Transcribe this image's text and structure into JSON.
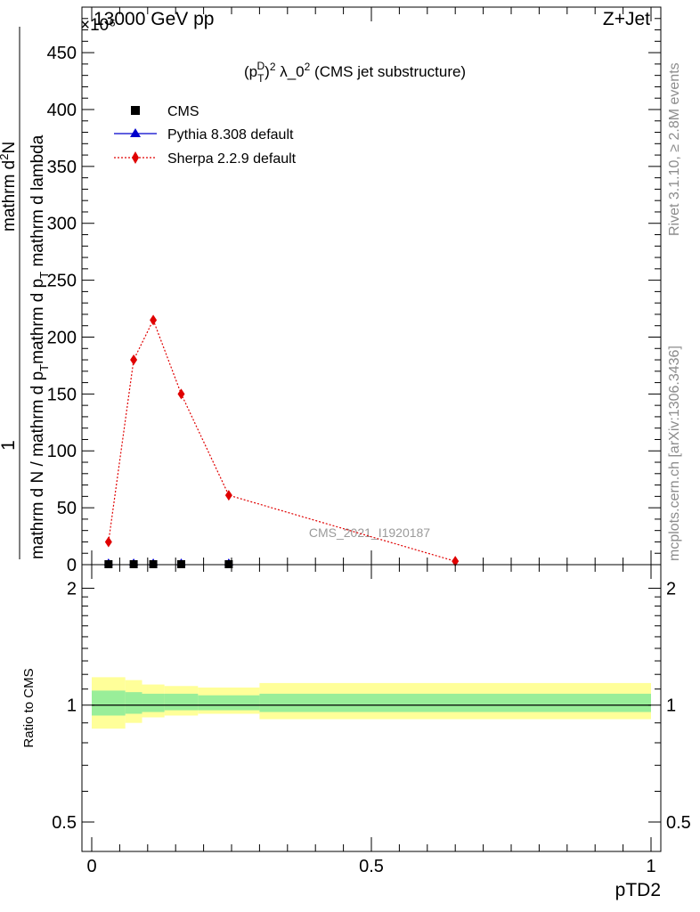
{
  "header": {
    "left": "13000 GeV pp",
    "right": "Z+Jet",
    "exponent_label": "×10⁶"
  },
  "side_labels": {
    "rivet": "Rivet 3.1.10, ≥ 2.8M events",
    "mcplots": "mcplots.cern.ch [arXiv:1306.3436]"
  },
  "chart_data": [
    {
      "type": "line",
      "title": "(p_T^D)^2 λ_0^2 (CMS jet substructure)",
      "title_parts": {
        "p": "(p",
        "sub": "T",
        "sup_d": "D",
        "close": ")",
        "sup2": "2",
        "mid": " λ_0",
        "sup3": "2",
        "tail": " (CMS jet substructure)"
      },
      "ylabel_fraction": {
        "numerator": "1",
        "denominator": "mathrm d N / mathrm d p_T mathrm d p_T mathrm d lambda",
        "rhs_numerator": "mathrm d²N",
        "denominator_parts": {
          "a": "mathrm d N / mathrm d p",
          "b": "T",
          "c": "mathrm d p",
          "d": "T",
          "e": " mathrm d lambda"
        },
        "rhs_parts": {
          "a": "mathrm d",
          "b": "2",
          "c": "N"
        }
      },
      "ylim": [
        0,
        490
      ],
      "yscale_factor": "×10⁶",
      "yticks": [
        0,
        50,
        100,
        150,
        200,
        250,
        300,
        350,
        400,
        450
      ],
      "ytick_labels": [
        "0",
        "50",
        "100",
        "150",
        "200",
        "250",
        "300",
        "350",
        "400",
        "450"
      ],
      "xlim": [
        -0.02,
        1.0
      ],
      "watermark": "CMS_2021_I1920187",
      "legend": [
        {
          "name": "CMS",
          "marker": "square",
          "color": "#000000"
        },
        {
          "name": "Pythia 8.308 default",
          "marker": "triangle",
          "color": "#0000cc"
        },
        {
          "name": "Sherpa 2.2.9 default",
          "marker": "diamond",
          "color": "#e00000"
        }
      ],
      "series": [
        {
          "name": "CMS",
          "x": [
            0.03,
            0.075,
            0.11,
            0.16,
            0.245
          ],
          "y": [
            0,
            0,
            0,
            0,
            0
          ]
        },
        {
          "name": "Pythia 8.308 default",
          "x": [
            0.03,
            0.075,
            0.11,
            0.16,
            0.245
          ],
          "y": [
            0,
            0,
            0,
            0,
            0
          ]
        },
        {
          "name": "Sherpa 2.2.9 default",
          "x": [
            0.03,
            0.075,
            0.11,
            0.16,
            0.245,
            0.65
          ],
          "y": [
            20,
            180,
            215,
            150,
            61,
            3
          ]
        }
      ]
    },
    {
      "type": "area",
      "ylabel": "Ratio to CMS",
      "xlabel": "pTD2",
      "ylim": [
        0.42,
        2.3
      ],
      "yscale": "log",
      "yticks": [
        0.5,
        1,
        2
      ],
      "ytick_labels": [
        "0.5",
        "1",
        "2"
      ],
      "xticks": [
        0,
        0.5,
        1
      ],
      "xtick_labels": [
        "0",
        "0.5",
        "1"
      ],
      "xlim": [
        -0.02,
        1.0
      ],
      "reference": 1,
      "bands": {
        "edges": [
          0,
          0.06,
          0.09,
          0.13,
          0.19,
          0.3,
          1.0
        ],
        "yellow_low": [
          0.87,
          0.9,
          0.93,
          0.94,
          0.95,
          0.92
        ],
        "yellow_high": [
          1.18,
          1.16,
          1.13,
          1.12,
          1.11,
          1.14
        ],
        "green_low": [
          0.94,
          0.95,
          0.96,
          0.97,
          0.97,
          0.96
        ],
        "green_high": [
          1.09,
          1.08,
          1.07,
          1.07,
          1.06,
          1.07
        ]
      },
      "colors": {
        "yellow": "#ffff99",
        "green": "#99ee99"
      }
    }
  ]
}
